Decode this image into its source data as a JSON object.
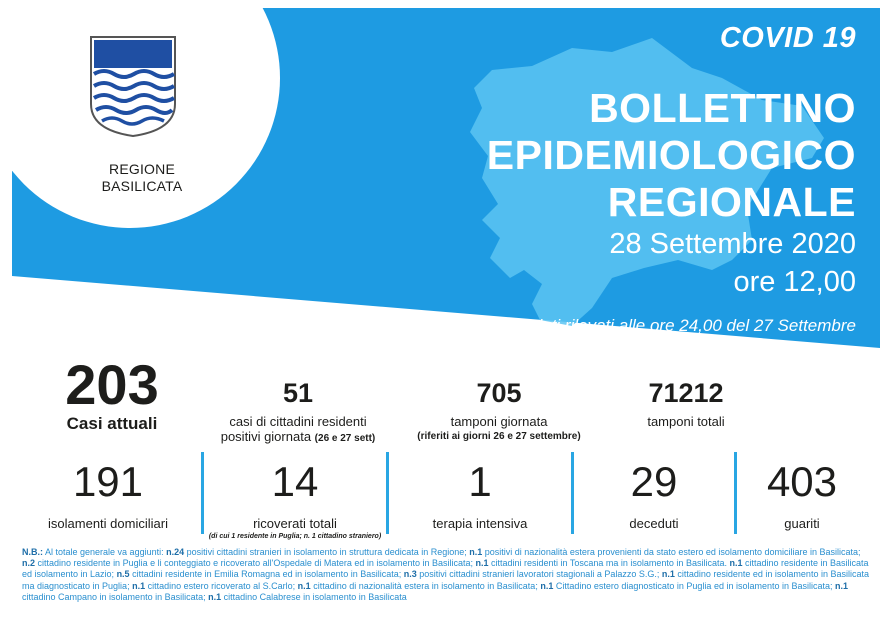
{
  "header": {
    "region_name_line1": "REGIONE",
    "region_name_line2": "BASILICATA",
    "covid": "COVID 19",
    "title_line1": "BOLLETTINO",
    "title_line2": "EPIDEMIOLOGICO",
    "title_line3": "REGIONALE",
    "date": "28 Settembre 2020",
    "hour": "ore 12,00",
    "note": "dati rilevati alle ore 24,00 del 27 Settembre"
  },
  "stats_top": {
    "casi_attuali": {
      "value": "203",
      "label": "Casi attuali"
    },
    "positivi_giornata": {
      "value": "51",
      "label_line1": "casi di cittadini residenti",
      "label_line2": "positivi giornata",
      "label_suffix": "(26 e 27 sett)"
    },
    "tamponi_giornata": {
      "value": "705",
      "label": "tamponi giornata",
      "sub": "(riferiti ai giorni 26 e 27 settembre)"
    },
    "tamponi_totali": {
      "value": "71212",
      "label": "tamponi totali"
    }
  },
  "stats_bottom": {
    "isolamenti": {
      "value": "191",
      "label": "isolamenti domiciliari"
    },
    "ricoverati": {
      "value": "14",
      "label": "ricoverati totali",
      "sub": "(di cui 1 residente in Puglia; n. 1 cittadino straniero)"
    },
    "terapia": {
      "value": "1",
      "label": "terapia intensiva"
    },
    "deceduti": {
      "value": "29",
      "label": "deceduti"
    },
    "guariti": {
      "value": "403",
      "label": "guariti"
    }
  },
  "nb": [
    {
      "b": "N.B.:"
    },
    {
      "t": " Al totale generale va aggiunti: "
    },
    {
      "b": "n.24"
    },
    {
      "t": " positivi cittadini stranieri in isolamento in struttura dedicata in Regione; "
    },
    {
      "b": "n.1"
    },
    {
      "t": " positivi di nazionalità estera provenienti da stato estero ed isolamento domiciliare in Basilicata; "
    },
    {
      "b": "n.2"
    },
    {
      "t": " cittadino residente in Puglia e li conteggiato e ricoverato all'Ospedale di Matera ed in isolamento in Basilicata; "
    },
    {
      "b": "n.1"
    },
    {
      "t": " cittadini residenti in Toscana ma in isolamento in Basilicata. "
    },
    {
      "b": "n.1"
    },
    {
      "t": " cittadino residente in Basilicata ed isolamento in Lazio; "
    },
    {
      "b": "n.5"
    },
    {
      "t": " cittadini residente in Emilia Romagna ed in isolamento in Basilicata; "
    },
    {
      "b": "n.3"
    },
    {
      "t": " positivi cittadini stranieri lavoratori stagionali a Palazzo S.G.; "
    },
    {
      "b": "n.1"
    },
    {
      "t": " cittadino residente ed in isolamento in Basilicata ma diagnosticato in Puglia;  "
    },
    {
      "b": "n.1"
    },
    {
      "t": " cittadino estero ricoverato al S.Carlo; "
    },
    {
      "b": "n.1"
    },
    {
      "t": " cittadino di nazionalità estera in isolamento in Basilicata; "
    },
    {
      "b": "n.1"
    },
    {
      "t": " Cittadino estero diagnosticato in Puglia ed in isolamento in Basilicata; "
    },
    {
      "b": "n.1"
    },
    {
      "t": " cittadino Campano in isolamento in Basilicata; "
    },
    {
      "b": "n.1"
    },
    {
      "t": " cittadino Calabrese in isolamento in Basilicata"
    }
  ],
  "colors": {
    "banner_blue": "#1e9be2",
    "map_blue": "#5cc4f2",
    "divider": "#29a6e3",
    "logo_blue": "#1f4fa3"
  },
  "icons": {
    "emblem": "regione-basilicata-coat-of-arms-icon",
    "map": "basilicata-map-silhouette-icon"
  }
}
